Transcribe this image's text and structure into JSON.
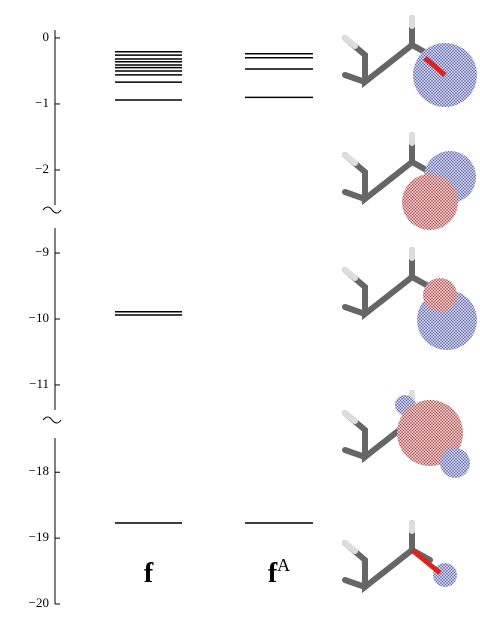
{
  "chart_data": {
    "type": "levels",
    "segments": [
      {
        "ylim": [
          -2.53,
          0.12
        ],
        "yticks": [
          0,
          {
            "value": -1,
            "label": "−1"
          },
          {
            "value": -2,
            "label": "−2"
          }
        ]
      },
      {
        "ylim": [
          -11.38,
          -8.62
        ],
        "yticks": [
          {
            "value": -9,
            "label": "−9"
          },
          {
            "value": -10,
            "label": "−10"
          },
          {
            "value": -11,
            "label": "−11"
          }
        ]
      },
      {
        "ylim": [
          -20,
          -17.48
        ],
        "yticks": [
          {
            "value": -18,
            "label": "−18"
          },
          {
            "value": -19,
            "label": "−19"
          },
          {
            "value": -20,
            "label": "−20"
          }
        ]
      }
    ],
    "series": [
      {
        "name": "f",
        "color": "#000000",
        "values": [
          -0.21,
          -0.26,
          -0.32,
          -0.36,
          -0.41,
          -0.45,
          -0.5,
          -0.56,
          -0.67,
          -0.94,
          -9.89,
          -9.94,
          -18.77
        ]
      },
      {
        "name": "f",
        "name_superscript": "A",
        "color": "#000000",
        "values": [
          -0.24,
          -0.3,
          -0.47,
          -0.9,
          -18.77
        ]
      }
    ]
  }
}
